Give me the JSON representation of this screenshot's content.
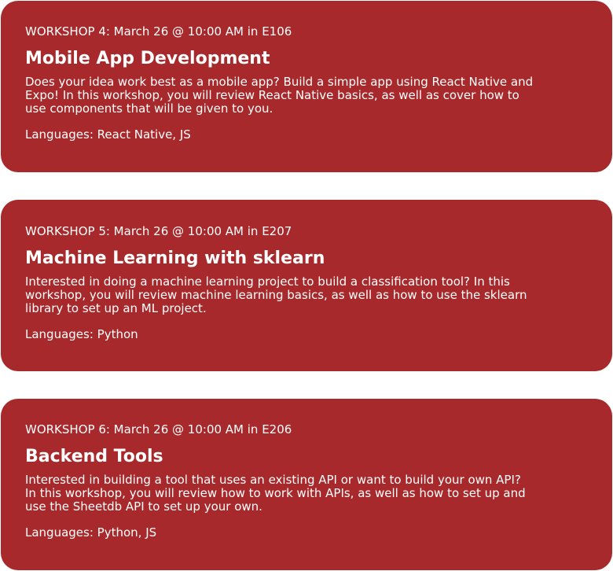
{
  "workshops": [
    {
      "schedule": "WORKSHOP 4: March 26 @ 10:00 AM in E106",
      "title": "Mobile App Development",
      "description": "Does your idea work best as a mobile app? Build a simple app using React Native and Expo! In this workshop, you will review React Native basics, as well as cover how to use components that will be given to you.",
      "languages": "Languages: React Native, JS"
    },
    {
      "schedule": "WORKSHOP 5: March 26 @ 10:00 AM in E207",
      "title": "Machine Learning with sklearn",
      "description": "Interested in doing a machine learning project to build a classification tool? In this workshop, you will review machine learning basics, as well as how to use the sklearn library to set up an ML project.",
      "languages": "Languages: Python"
    },
    {
      "schedule": "WORKSHOP 6: March 26 @ 10:00 AM in E206",
      "title": "Backend Tools",
      "description": "Interested in building a tool that uses an existing API or want to build your own API? In this workshop, you will review how to work with APIs, as well as how to set up and use the Sheetdb API to set up your own.",
      "languages": "Languages: Python, JS"
    }
  ],
  "colors": {
    "card_background": "#a8292b",
    "card_text": "#ffffff",
    "page_background": "#ffffff"
  }
}
